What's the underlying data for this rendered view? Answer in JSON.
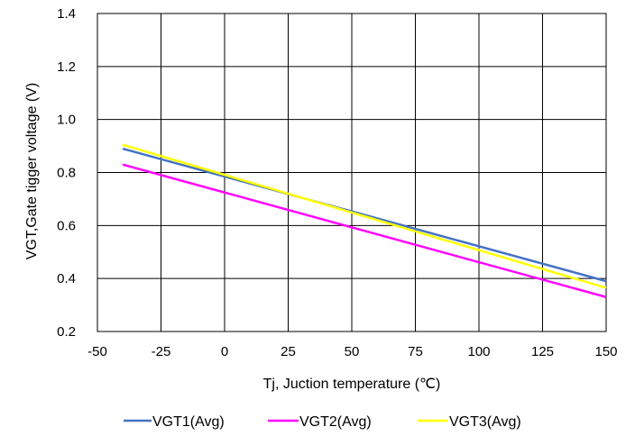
{
  "chart_data": {
    "type": "line",
    "xlabel": "Tj, Juction temperature (℃)",
    "ylabel": "VGT,Gate tigger voltage (V)",
    "xlim": [
      -50,
      150
    ],
    "ylim": [
      0.2,
      1.4
    ],
    "xticks": [
      -50,
      -25,
      0,
      25,
      50,
      75,
      100,
      125,
      150
    ],
    "yticks": [
      0.2,
      0.4,
      0.6,
      0.8,
      1.0,
      1.2,
      1.4
    ],
    "xtick_labels": [
      "-50",
      "-25",
      "0",
      "25",
      "50",
      "75",
      "100",
      "125",
      "150"
    ],
    "ytick_labels": [
      "0.2",
      "0.4",
      "0.6",
      "0.8",
      "1.0",
      "1.2",
      "1.4"
    ],
    "grid": true,
    "legend_position": "bottom",
    "series": [
      {
        "name": "VGT1(Avg)",
        "color": "#4472C4",
        "x": [
          -40,
          150
        ],
        "y": [
          0.89,
          0.39
        ]
      },
      {
        "name": "VGT2(Avg)",
        "color": "#FF00FF",
        "x": [
          -40,
          150
        ],
        "y": [
          0.83,
          0.33
        ]
      },
      {
        "name": "VGT3(Avg)",
        "color": "#FFFF00",
        "x": [
          -40,
          150
        ],
        "y": [
          0.905,
          0.365
        ]
      }
    ]
  }
}
